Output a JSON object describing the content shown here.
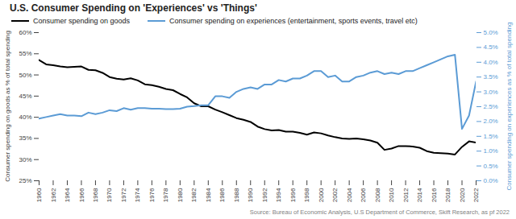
{
  "chart_data": {
    "type": "line",
    "title": "U.S. Consumer Spending on 'Experiences' vs 'Things'",
    "ylabel": "Consumer spending on goods as % of total spending",
    "y2label": "Consumer spending on experiences as % of total spending",
    "source": "Source: Bureau of Economic Analysis, U.S Department of Commerce, Skift Research, as pf 2022",
    "legend": "top",
    "grid": false,
    "x": [
      1960,
      1961,
      1962,
      1963,
      1964,
      1965,
      1966,
      1967,
      1968,
      1969,
      1970,
      1971,
      1972,
      1973,
      1974,
      1975,
      1976,
      1977,
      1978,
      1979,
      1980,
      1981,
      1982,
      1983,
      1984,
      1985,
      1986,
      1987,
      1988,
      1989,
      1990,
      1991,
      1992,
      1993,
      1994,
      1995,
      1996,
      1997,
      1998,
      1999,
      2000,
      2001,
      2002,
      2003,
      2004,
      2005,
      2006,
      2007,
      2008,
      2009,
      2010,
      2011,
      2012,
      2013,
      2014,
      2015,
      2016,
      2017,
      2018,
      2019,
      2020,
      2021,
      2022
    ],
    "xlim": [
      1960,
      2022
    ],
    "xticks": [
      1960,
      1962,
      1964,
      1966,
      1968,
      1970,
      1972,
      1974,
      1976,
      1978,
      1980,
      1982,
      1984,
      1986,
      1988,
      1990,
      1992,
      1994,
      1996,
      1998,
      2000,
      2002,
      2004,
      2006,
      2008,
      2010,
      2012,
      2014,
      2016,
      2018,
      2020,
      2022
    ],
    "ylim": [
      25,
      60
    ],
    "yticks": [
      {
        "value": 25,
        "label": "25%"
      },
      {
        "value": 30,
        "label": "30%"
      },
      {
        "value": 35,
        "label": "35%"
      },
      {
        "value": 40,
        "label": "40%"
      },
      {
        "value": 45,
        "label": "45%"
      },
      {
        "value": 50,
        "label": "50%"
      },
      {
        "value": 55,
        "label": "55%"
      },
      {
        "value": 60,
        "label": "60%"
      }
    ],
    "y2lim": [
      0,
      5
    ],
    "y2ticks": [
      {
        "value": 0,
        "label": "0.0%"
      },
      {
        "value": 0.5,
        "label": "0.5%"
      },
      {
        "value": 1,
        "label": "1.0%"
      },
      {
        "value": 1.5,
        "label": "1.5%"
      },
      {
        "value": 2,
        "label": "2.0%"
      },
      {
        "value": 2.5,
        "label": "2.5%"
      },
      {
        "value": 3,
        "label": "3.0%"
      },
      {
        "value": 3.5,
        "label": "3.5%"
      },
      {
        "value": 4,
        "label": "4.0%"
      },
      {
        "value": 4.5,
        "label": "4.5%"
      },
      {
        "value": 5,
        "label": "5.0%"
      }
    ],
    "series": [
      {
        "name": "Consumer spending on goods",
        "color": "#000000",
        "values": [
          53.5,
          52.5,
          52.3,
          52.0,
          51.8,
          51.9,
          52.0,
          51.2,
          51.1,
          50.5,
          49.5,
          49.1,
          48.9,
          49.2,
          48.7,
          47.8,
          47.6,
          47.2,
          46.7,
          46.4,
          45.5,
          44.7,
          43.3,
          42.6,
          42.6,
          41.8,
          41.2,
          40.5,
          39.8,
          39.4,
          38.9,
          37.8,
          37.2,
          36.9,
          37.0,
          36.6,
          36.6,
          36.3,
          35.9,
          36.4,
          36.2,
          35.7,
          35.3,
          35.0,
          34.9,
          35.0,
          34.8,
          34.5,
          34.0,
          32.3,
          32.6,
          33.2,
          33.2,
          33.1,
          32.8,
          32.0,
          31.6,
          31.5,
          31.4,
          31.2,
          33.0,
          34.3,
          34.0
        ]
      },
      {
        "name": "Consumer spending on experiences (entertainment, sports events, travel etc)",
        "color": "#5b9bd5",
        "axis": "y2",
        "values": [
          2.1,
          2.15,
          2.2,
          2.25,
          2.2,
          2.2,
          2.18,
          2.3,
          2.25,
          2.3,
          2.38,
          2.35,
          2.45,
          2.4,
          2.45,
          2.45,
          2.43,
          2.43,
          2.42,
          2.42,
          2.43,
          2.5,
          2.52,
          2.55,
          2.55,
          2.85,
          2.85,
          2.8,
          3.0,
          3.1,
          3.15,
          3.1,
          3.25,
          3.25,
          3.4,
          3.35,
          3.45,
          3.45,
          3.55,
          3.7,
          3.7,
          3.5,
          3.55,
          3.35,
          3.35,
          3.5,
          3.55,
          3.65,
          3.7,
          3.6,
          3.65,
          3.6,
          3.7,
          3.7,
          3.8,
          3.9,
          4.0,
          4.1,
          4.2,
          4.25,
          1.75,
          2.2,
          3.35
        ]
      }
    ]
  }
}
